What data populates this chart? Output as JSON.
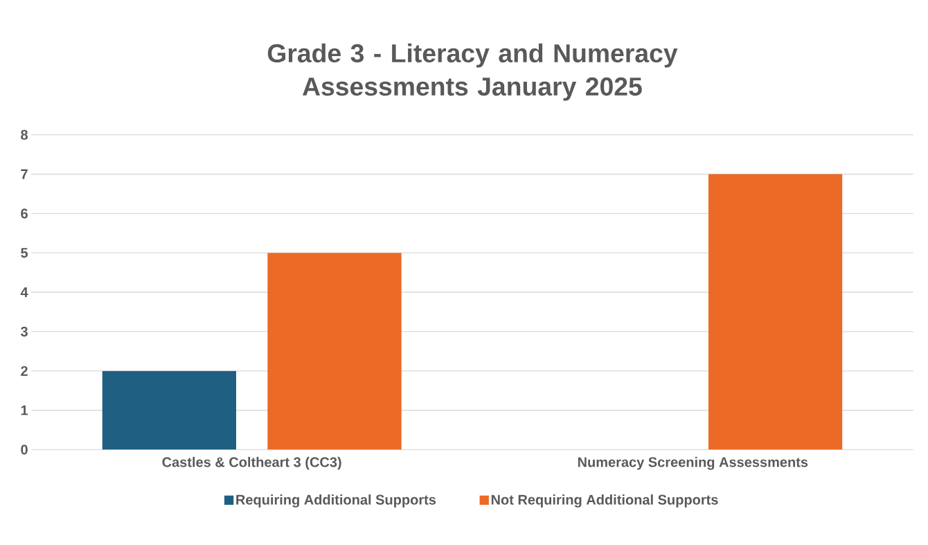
{
  "chart_data": {
    "type": "bar",
    "title": "Grade 3 - Literacy and Numeracy Assessments January 2025",
    "categories": [
      "Castles & Coltheart 3 (CC3)",
      "Numeracy Screening Assessments"
    ],
    "series": [
      {
        "name": "Requiring Additional Supports",
        "color": "#1f5f82",
        "values": [
          2,
          0
        ]
      },
      {
        "name": "Not Requiring Additional Supports",
        "color": "#ec6a25",
        "values": [
          5,
          7
        ]
      }
    ],
    "ylim": [
      0,
      8
    ],
    "yticks": [
      0,
      1,
      2,
      3,
      4,
      5,
      6,
      7,
      8
    ],
    "grid": "y",
    "legend": "bottom"
  }
}
